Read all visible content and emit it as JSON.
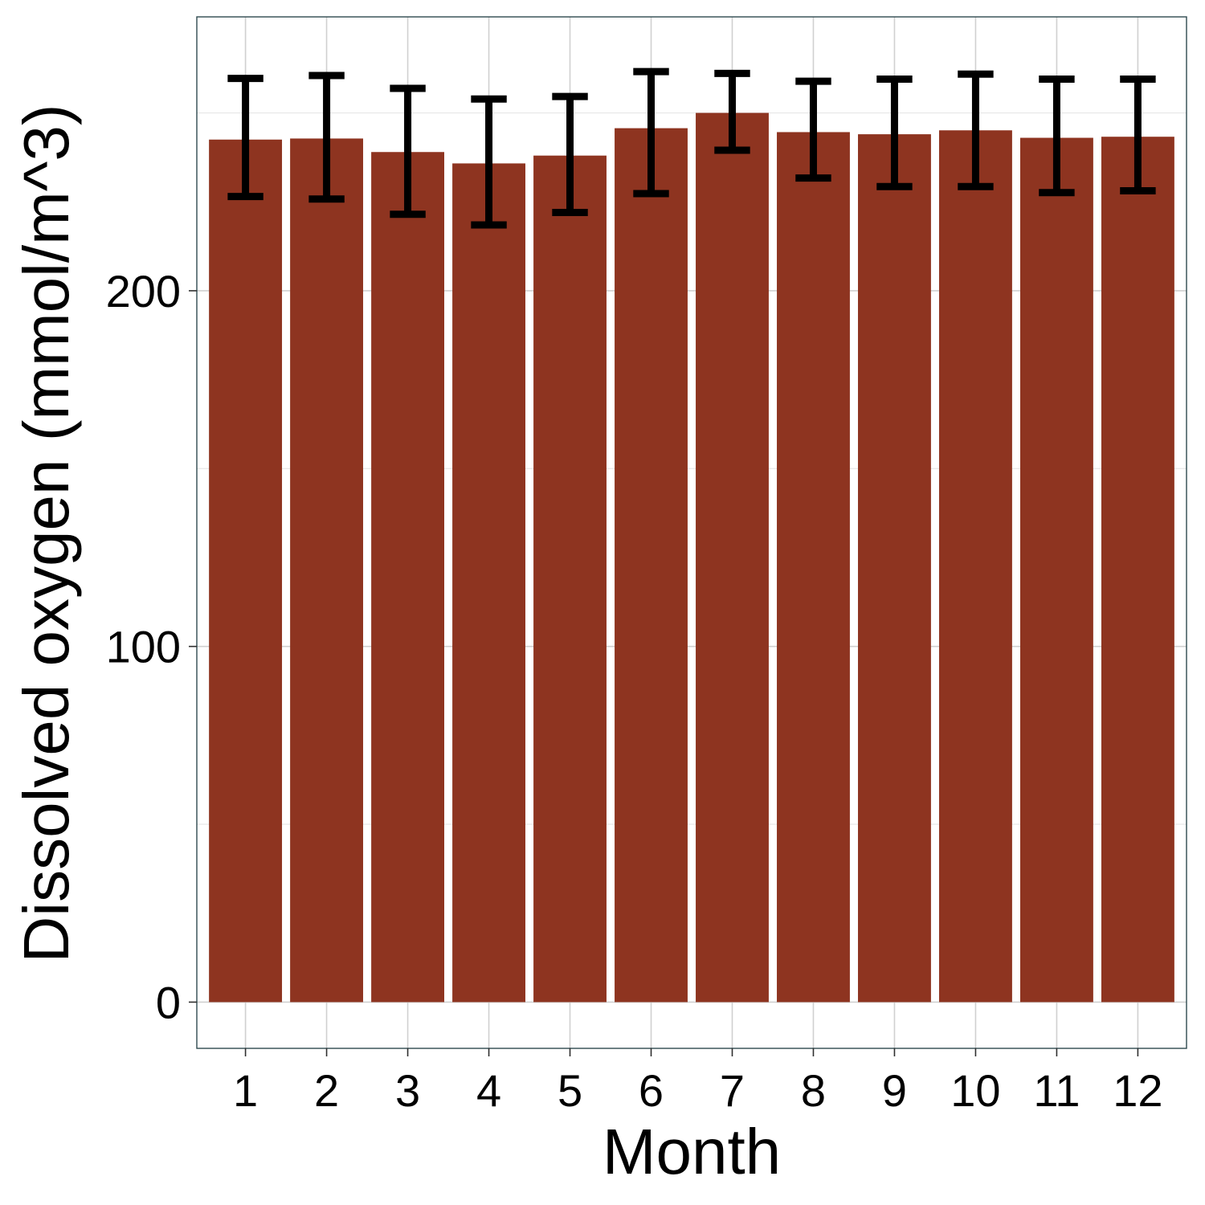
{
  "chart_data": {
    "type": "bar",
    "title": "",
    "xlabel": "Month",
    "ylabel": "Dissolved oxygen (mmol/m^3)",
    "categories": [
      "1",
      "2",
      "3",
      "4",
      "5",
      "6",
      "7",
      "8",
      "9",
      "10",
      "11",
      "12"
    ],
    "values": [
      242.5,
      242.8,
      239.0,
      235.8,
      238.0,
      245.7,
      250.0,
      244.6,
      244.0,
      245.1,
      243.0,
      243.3
    ],
    "error_low": [
      226.5,
      225.8,
      221.5,
      218.5,
      222.0,
      227.3,
      239.5,
      231.7,
      229.3,
      229.3,
      227.6,
      228.1
    ],
    "error_high": [
      259.7,
      260.5,
      256.9,
      253.9,
      254.6,
      261.6,
      261.1,
      258.9,
      259.5,
      260.9,
      259.5,
      259.5
    ],
    "ylim": [
      -13,
      277
    ],
    "yticks": [
      "0",
      "100",
      "200"
    ],
    "grid": true,
    "bar_color": "#8e3420",
    "error_bar_color": "#000000",
    "panel_border_color": "#2f4a4f"
  }
}
